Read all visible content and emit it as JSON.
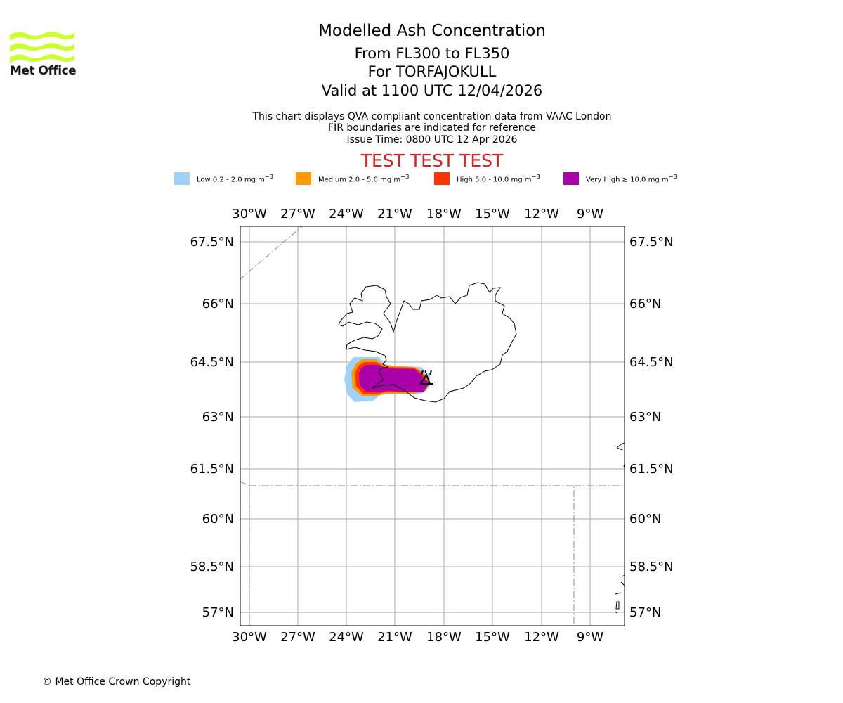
{
  "header": {
    "title": "Modelled Ash Concentration",
    "levels": "From FL300 to FL350",
    "volcano": "For TORFAJOKULL",
    "valid": "Valid at 1100 UTC 12/04/2026",
    "note1": "This chart displays QVA compliant concentration data from VAAC London",
    "note2": "FIR boundaries are indicated for reference",
    "issue": "Issue Time: 0800 UTC 12 Apr 2026",
    "test_banner": "TEST TEST TEST"
  },
  "logo": {
    "text": "Met Office",
    "color": "#ccff33"
  },
  "legend": [
    {
      "label": "Low 0.2 - 2.0 mg m",
      "color": "#a0d2f8"
    },
    {
      "label": "Medium 2.0 - 5.0 mg m",
      "color": "#ff9900"
    },
    {
      "label": "High 5.0 - 10.0 mg m",
      "color": "#ff3300"
    },
    {
      "label": "Very High ≥ 10.0 mg m",
      "color": "#aa00aa"
    }
  ],
  "legend_unit_exp": "−3",
  "map": {
    "lon_ticks": [
      "30°W",
      "27°W",
      "24°W",
      "21°W",
      "18°W",
      "15°W",
      "12°W",
      "9°W"
    ],
    "lat_ticks": [
      "67.5°N",
      "66°N",
      "64.5°N",
      "63°N",
      "61.5°N",
      "60°N",
      "58.5°N",
      "57°N"
    ],
    "grid_color": "#aaaaaa",
    "volcano_marker": "volcano-symbol"
  },
  "footer": {
    "copyright": "© Met Office Crown Copyright"
  }
}
